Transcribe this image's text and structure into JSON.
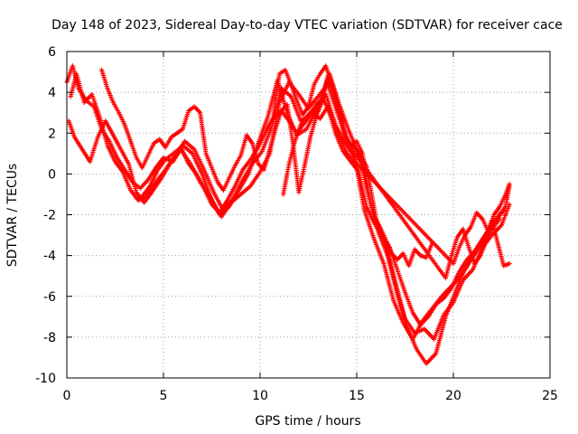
{
  "chart_data": {
    "type": "scatter",
    "title": "Day 148 of 2023, Sidereal Day-to-day VTEC variation (SDTVAR) for receiver cace",
    "xlabel": "GPS time / hours",
    "ylabel": "SDTVAR / TECUs",
    "xlim": [
      0,
      25
    ],
    "ylim": [
      -10,
      6
    ],
    "xticks": [
      0,
      5,
      10,
      15,
      20,
      25
    ],
    "yticks": [
      -10,
      -8,
      -6,
      -4,
      -2,
      0,
      2,
      4,
      6
    ],
    "grid": true,
    "legend": "none",
    "marker": "plus",
    "color": "#ff0000",
    "series": [
      {
        "name": "track-1",
        "x": [
          0.0,
          0.3,
          0.6,
          1.0,
          1.4,
          1.8,
          2.2,
          2.6,
          3.0,
          3.4,
          3.8,
          4.2,
          4.6,
          5.0,
          5.5,
          6.0,
          6.5,
          7.0,
          7.5,
          8.0,
          8.5,
          9.0,
          9.5,
          10.0,
          10.5,
          11.0,
          11.5,
          12.0,
          12.5,
          13.0,
          13.5,
          14.0,
          14.5,
          15.0,
          15.5,
          16.0,
          16.5,
          17.0,
          17.5,
          18.0,
          18.5,
          19.0,
          19.5,
          20.0,
          20.5,
          21.0,
          21.5,
          22.0,
          22.5,
          22.9
        ],
        "y": [
          4.5,
          5.3,
          4.2,
          3.6,
          3.3,
          2.2,
          1.6,
          0.8,
          0.2,
          -0.4,
          -0.7,
          -0.3,
          0.3,
          0.8,
          0.6,
          1.4,
          1.0,
          0.0,
          -1.3,
          -2.1,
          -1.4,
          -1.0,
          -0.6,
          0.1,
          1.0,
          3.5,
          4.5,
          3.9,
          3.2,
          3.8,
          4.4,
          3.0,
          1.6,
          1.2,
          0.4,
          -2.2,
          -3.5,
          -5.3,
          -7.1,
          -7.8,
          -7.6,
          -8.1,
          -6.9,
          -6.3,
          -5.2,
          -4.7,
          -3.6,
          -3.0,
          -2.5,
          -1.5
        ]
      },
      {
        "name": "track-2",
        "x": [
          0.2,
          0.5,
          0.9,
          1.3,
          1.7,
          2.1,
          2.5,
          2.9,
          3.3,
          3.7,
          4.1,
          4.6,
          5.1,
          5.6,
          6.1,
          6.6,
          7.1,
          7.6,
          8.1,
          8.6,
          9.1,
          9.6,
          10.1,
          10.6,
          11.1,
          11.6,
          12.1,
          12.6,
          13.1,
          13.6,
          14.1,
          14.6,
          15.1,
          15.6,
          16.1,
          16.6,
          17.1,
          17.6,
          18.1,
          18.6,
          19.1,
          19.6,
          20.1,
          20.6,
          21.1,
          21.6,
          22.1,
          22.6
        ],
        "y": [
          3.8,
          4.9,
          3.5,
          3.9,
          2.8,
          1.4,
          0.6,
          0.1,
          -0.8,
          -1.3,
          -1.1,
          -0.4,
          0.2,
          0.9,
          1.6,
          1.2,
          0.2,
          -0.9,
          -1.8,
          -1.2,
          -0.3,
          0.5,
          1.1,
          2.3,
          4.2,
          3.8,
          2.6,
          2.9,
          3.6,
          4.9,
          3.4,
          2.1,
          1.0,
          -1.0,
          -2.8,
          -4.0,
          -5.9,
          -7.5,
          -8.6,
          -9.3,
          -8.8,
          -7.0,
          -5.8,
          -4.6,
          -3.8,
          -3.1,
          -2.4,
          -1.8
        ]
      },
      {
        "name": "track-3",
        "x": [
          0.1,
          0.4,
          0.8,
          1.2,
          1.6,
          2.0,
          2.4,
          2.8,
          3.2,
          3.6,
          4.0,
          4.4,
          4.9,
          5.4,
          5.9,
          6.4,
          6.9,
          7.4,
          7.9,
          8.4,
          8.9,
          9.4,
          9.9,
          10.4,
          10.9,
          11.4,
          11.9,
          12.4,
          12.9,
          13.4,
          13.9,
          14.4,
          14.9,
          15.4,
          15.9,
          16.4,
          16.9,
          17.4,
          17.9,
          18.4,
          18.9,
          19.4,
          20.4,
          21.4,
          22.4
        ],
        "y": [
          2.6,
          1.8,
          1.2,
          0.6,
          1.8,
          2.6,
          1.9,
          1.2,
          0.5,
          -0.9,
          -1.4,
          -0.9,
          -0.2,
          0.6,
          1.2,
          0.5,
          -0.4,
          -1.1,
          -2.0,
          -1.6,
          -0.8,
          0.0,
          1.5,
          2.8,
          4.6,
          3.0,
          1.9,
          2.2,
          3.1,
          3.9,
          2.4,
          1.5,
          0.8,
          -1.8,
          -3.2,
          -4.4,
          -6.2,
          -7.3,
          -8.1,
          -7.2,
          -6.6,
          -6.0,
          -5.0,
          -3.5,
          -2.2
        ]
      },
      {
        "name": "track-4",
        "x": [
          1.8,
          2.1,
          2.4,
          2.7,
          3.0,
          3.3,
          3.6,
          3.9,
          4.2,
          4.5,
          4.8,
          5.1,
          5.4,
          5.7,
          6.0,
          6.3,
          6.6,
          6.9,
          7.2,
          7.5,
          7.8,
          8.1,
          8.4,
          8.7,
          9.0,
          9.3,
          9.6,
          9.9,
          10.2,
          10.5,
          10.8,
          11.1,
          11.4,
          11.7,
          12.0,
          12.3,
          12.6,
          12.9,
          13.2,
          13.5,
          13.8,
          14.1,
          14.4,
          14.7,
          15.0,
          15.3,
          15.6,
          15.9,
          16.2,
          16.5,
          16.8,
          17.1,
          17.4,
          17.7,
          18.0,
          18.3,
          18.6,
          18.9
        ],
        "y": [
          5.1,
          4.2,
          3.5,
          3.0,
          2.4,
          1.6,
          0.8,
          0.3,
          0.9,
          1.5,
          1.7,
          1.3,
          1.8,
          2.0,
          2.2,
          3.1,
          3.3,
          3.0,
          1.0,
          0.3,
          -0.4,
          -0.8,
          -0.2,
          0.4,
          0.9,
          1.9,
          1.5,
          0.5,
          0.2,
          1.2,
          2.2,
          3.1,
          3.4,
          1.5,
          -0.9,
          0.4,
          1.8,
          2.8,
          3.5,
          4.8,
          4.1,
          3.2,
          1.9,
          1.4,
          1.6,
          1.0,
          -0.9,
          -2.1,
          -2.6,
          -3.2,
          -3.9,
          -4.2,
          -3.9,
          -4.5,
          -3.7,
          -4.0,
          -4.1,
          -3.4
        ]
      },
      {
        "name": "track-5",
        "x": [
          3.9,
          4.3,
          4.7,
          5.1,
          5.5,
          5.9,
          6.3,
          6.7,
          7.1,
          7.5,
          7.9,
          8.3,
          8.7,
          9.1,
          9.5,
          9.9,
          10.3,
          10.7,
          11.1,
          11.5,
          11.9,
          12.3,
          12.7,
          13.1,
          13.5,
          13.9,
          14.3,
          14.7,
          15.1,
          15.5,
          15.9,
          16.3,
          16.7,
          17.1,
          17.5,
          17.9,
          18.3,
          18.7,
          19.1,
          19.5,
          19.9,
          20.3,
          20.7,
          21.1,
          21.5,
          21.9,
          22.3,
          22.7,
          22.9
        ],
        "y": [
          -1.1,
          -0.6,
          0.2,
          0.7,
          1.0,
          1.3,
          0.5,
          0.0,
          -0.7,
          -1.5,
          -1.9,
          -1.3,
          -0.6,
          0.2,
          0.7,
          1.3,
          2.1,
          2.8,
          3.1,
          2.6,
          2.0,
          2.5,
          3.0,
          2.7,
          3.3,
          2.0,
          1.1,
          0.6,
          0.1,
          -1.6,
          -2.4,
          -3.0,
          -3.6,
          -4.7,
          -5.8,
          -6.8,
          -7.4,
          -7.0,
          -6.4,
          -6.1,
          -5.6,
          -4.8,
          -4.2,
          -3.8,
          -3.2,
          -2.6,
          -2.1,
          -1.6,
          -0.6
        ]
      },
      {
        "name": "track-6",
        "x": [
          10.7,
          11.0,
          11.3,
          11.6,
          11.9,
          12.2,
          12.5,
          12.8,
          13.1,
          13.4,
          13.7,
          14.0,
          14.3,
          14.6,
          19.6,
          19.9,
          20.2,
          20.5,
          20.8,
          21.1,
          21.4,
          21.7,
          22.0,
          22.3,
          22.6,
          22.9
        ],
        "y": [
          2.9,
          4.9,
          5.1,
          4.4,
          3.6,
          2.9,
          3.3,
          4.4,
          4.9,
          5.3,
          4.4,
          3.5,
          2.2,
          1.4,
          -5.1,
          -4.0,
          -3.1,
          -2.7,
          -3.6,
          -4.4,
          -4.0,
          -3.3,
          -2.3,
          -3.4,
          -4.5,
          -4.4
        ]
      },
      {
        "name": "track-7",
        "x": [
          11.2,
          11.5,
          11.8,
          12.1,
          12.4,
          12.7,
          13.0,
          13.3,
          13.6,
          13.9,
          14.2,
          14.5,
          20.0,
          20.3,
          20.6,
          20.9,
          21.2,
          21.5,
          21.8,
          22.1,
          22.4,
          22.7,
          22.9
        ],
        "y": [
          -1.0,
          0.5,
          1.6,
          2.4,
          2.8,
          3.1,
          3.5,
          3.6,
          3.0,
          2.4,
          1.6,
          1.0,
          -4.4,
          -3.6,
          -3.0,
          -2.6,
          -1.9,
          -2.2,
          -2.8,
          -2.0,
          -1.6,
          -1.0,
          -0.5
        ]
      }
    ]
  }
}
